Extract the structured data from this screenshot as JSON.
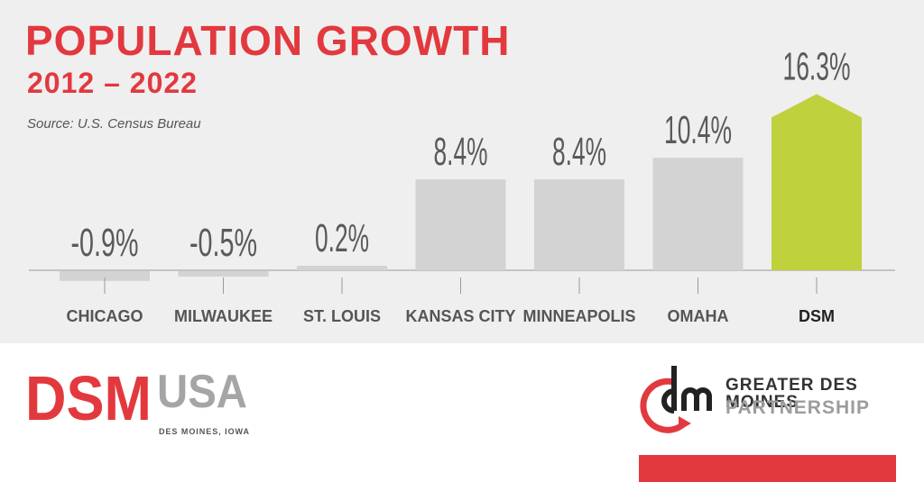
{
  "header": {
    "title": "POPULATION GROWTH",
    "subtitle": "2012 – 2022",
    "source": "Source: U.S. Census Bureau"
  },
  "chart_data": {
    "type": "bar",
    "categories": [
      "CHICAGO",
      "MILWAUKEE",
      "ST. LOUIS",
      "KANSAS CITY",
      "MINNEAPOLIS",
      "OMAHA",
      "DSM"
    ],
    "values": [
      -0.9,
      -0.5,
      0.2,
      8.4,
      8.4,
      10.4,
      16.3
    ],
    "value_labels": [
      "-0.9%",
      "-0.5%",
      "0.2%",
      "8.4%",
      "8.4%",
      "10.4%",
      "16.3%"
    ],
    "ylim": [
      -1,
      17
    ],
    "grid": false,
    "legend": "none",
    "colors": {
      "default_bar": "#d3d3d3",
      "highlight_bar": "#bfd13c",
      "axis": "#9a9a9a",
      "value_label": "#5a5a5a",
      "category_label": "#555555",
      "highlight_label": "#222222"
    },
    "highlight_index": 6
  },
  "footer": {
    "left_logo": {
      "dsm": "DSM",
      "usa": "USA",
      "tagline": "DES MOINES, IOWA"
    },
    "right_logo": {
      "name": "GREATER DES MOINES",
      "sub": "PARTNERSHIP",
      "icon": "dm-monogram-icon"
    },
    "accent_color": "#e2393f"
  }
}
